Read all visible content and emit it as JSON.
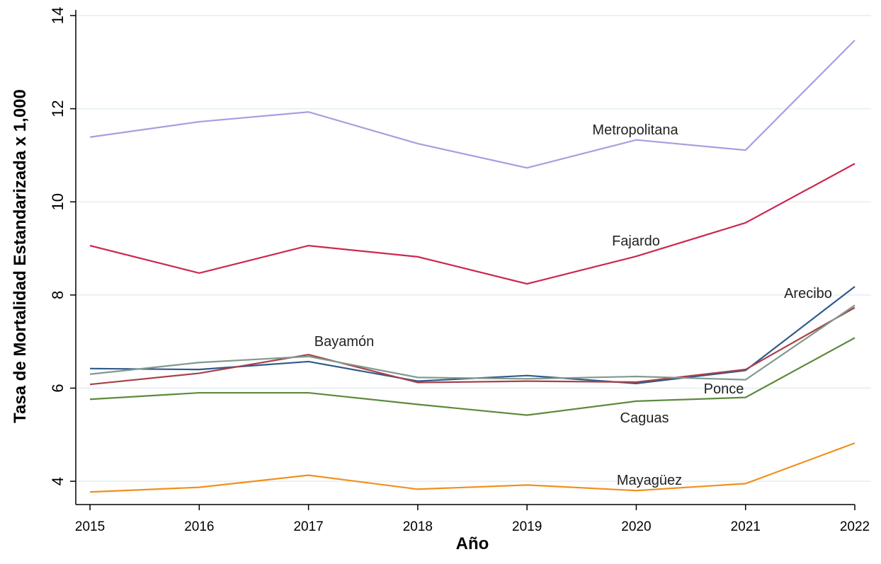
{
  "chart_data": {
    "type": "line",
    "x_label": "Año",
    "y_label": "Tasa de Mortalidad Estandarizada x 1,000",
    "x": [
      2015,
      2016,
      2017,
      2018,
      2019,
      2020,
      2021,
      2022
    ],
    "xlim": [
      2014.87,
      2022
    ],
    "xticks": [
      2015,
      2016,
      2017,
      2018,
      2019,
      2020,
      2021,
      2022
    ],
    "ylim": [
      3.5,
      14
    ],
    "yticks": [
      4,
      6,
      8,
      10,
      12,
      14
    ],
    "grid": true,
    "series": [
      {
        "name": "Metropolitana",
        "color": "#a89ee0",
        "values": [
          11.39,
          11.72,
          11.93,
          11.25,
          10.73,
          11.33,
          11.11,
          13.47
        ]
      },
      {
        "name": "Fajardo",
        "color": "#cc2850",
        "values": [
          9.06,
          8.47,
          9.06,
          8.82,
          8.24,
          8.83,
          9.55,
          10.82
        ]
      },
      {
        "name": "Arecibo",
        "color": "#2f5a8a",
        "values": [
          6.42,
          6.4,
          6.57,
          6.15,
          6.27,
          6.1,
          6.38,
          8.18
        ]
      },
      {
        "name": "Bayamón",
        "color": "#a8404a",
        "values": [
          6.08,
          6.32,
          6.72,
          6.12,
          6.15,
          6.13,
          6.4,
          7.73
        ]
      },
      {
        "name": "Ponce",
        "color": "#7f9a8e",
        "values": [
          6.3,
          6.55,
          6.68,
          6.23,
          6.2,
          6.25,
          6.18,
          7.78
        ]
      },
      {
        "name": "Caguas",
        "color": "#5e8a3c",
        "values": [
          5.76,
          5.9,
          5.9,
          5.65,
          5.42,
          5.72,
          5.8,
          7.08
        ]
      },
      {
        "name": "Mayagüez",
        "color": "#f0901c",
        "values": [
          3.77,
          3.87,
          4.13,
          3.83,
          3.92,
          3.8,
          3.95,
          4.82
        ]
      }
    ]
  }
}
